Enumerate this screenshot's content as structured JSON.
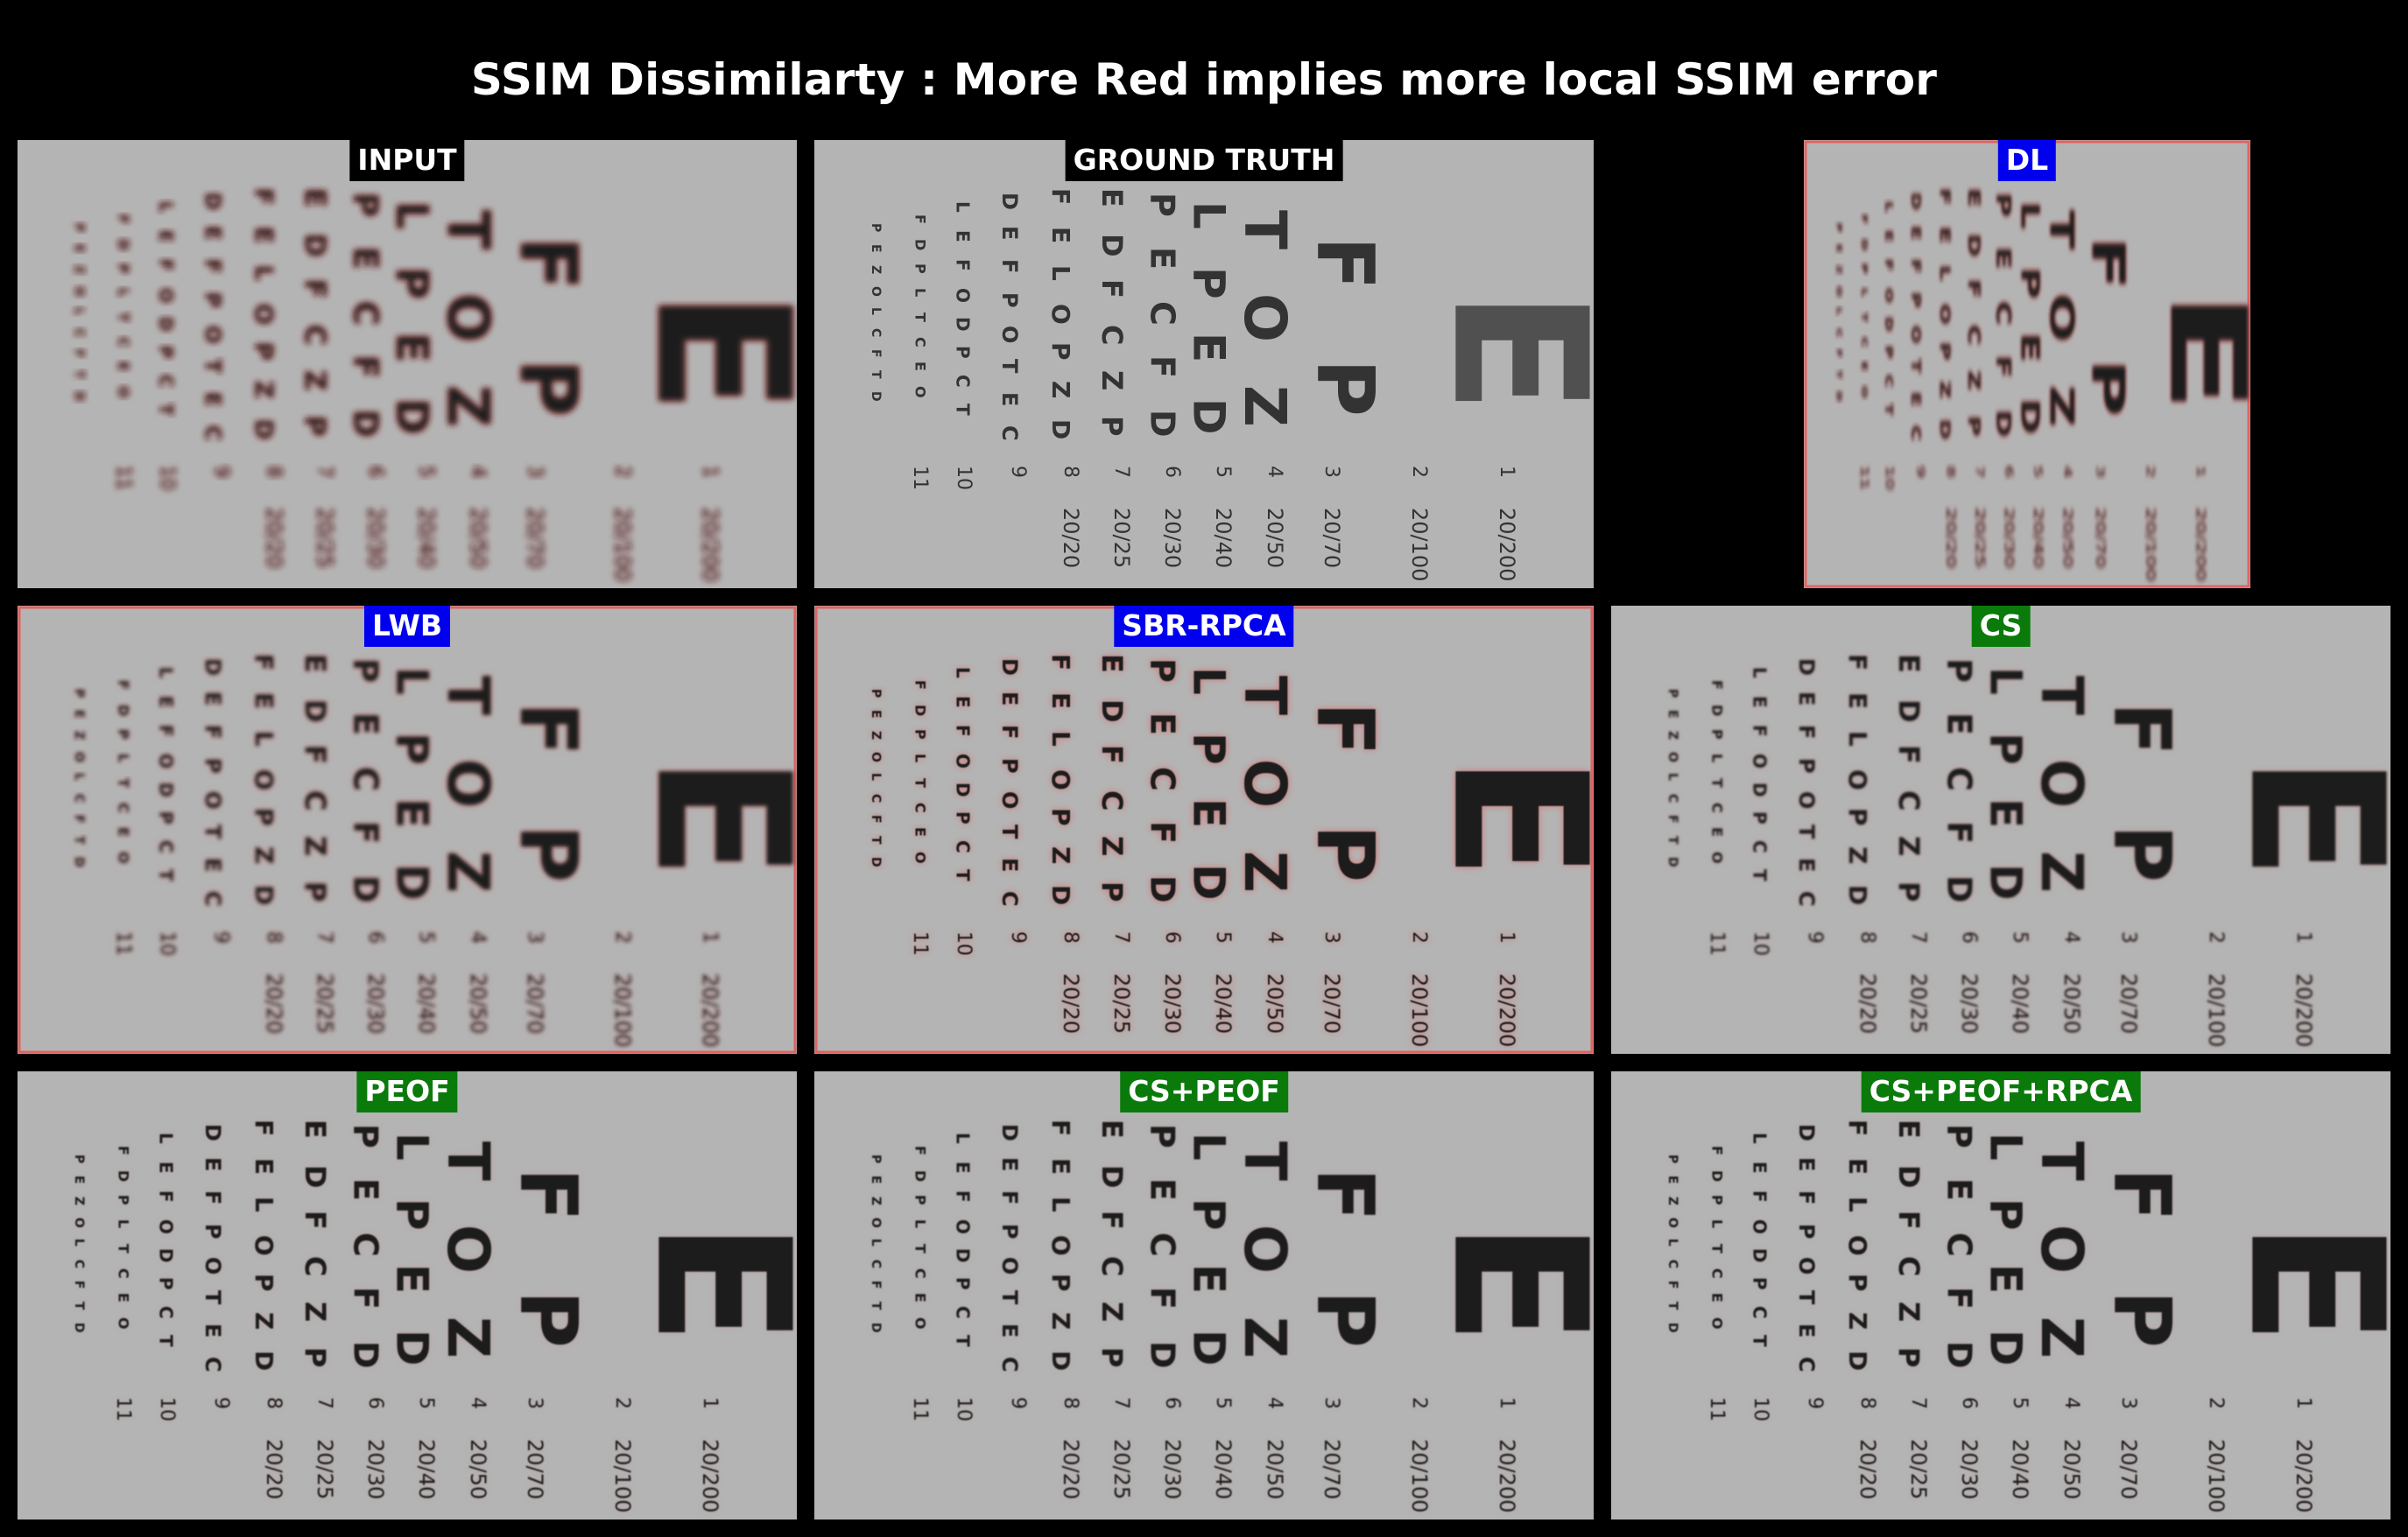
{
  "figure": {
    "title": "SSIM Dissimilarty : More Red implies more local SSIM error"
  },
  "colors": {
    "background": "#000000",
    "chart_gray": "#b3b3b3",
    "badge_black": "#000000",
    "badge_blue": "#0000ee",
    "badge_green": "#0a7a0a",
    "error_red": "#e85050"
  },
  "chart": {
    "big_letters": [
      "E",
      "F",
      "P",
      "T",
      "O",
      "Z",
      "L",
      "P",
      "E",
      "D"
    ],
    "columns": [
      "P E C F D",
      "E D F C Z P",
      "F E L O P Z D",
      "D E F P O T E C",
      "L E F O D P C T",
      "F D P L T C E O",
      "P E Z O L C F T D"
    ],
    "row_numbers": [
      "1",
      "2",
      "3",
      "4",
      "5",
      "6",
      "7",
      "8",
      "9",
      "10",
      "11"
    ],
    "acuity": [
      "20/200",
      "20/100",
      "20/70",
      "20/50",
      "20/40",
      "20/30",
      "20/25",
      "20/20"
    ]
  },
  "panels": [
    {
      "label": "INPUT",
      "badge_color": "#000000",
      "mode": "input",
      "blur": 3.4,
      "redness": 0.9
    },
    {
      "label": "GROUND TRUTH",
      "badge_color": "#000000",
      "mode": "gt",
      "blur": 0,
      "redness": 0
    },
    {
      "label": "DL",
      "badge_color": "#0000ee",
      "mode": "dl",
      "blur": 3.0,
      "redness": 0.9
    },
    {
      "label": "LWB",
      "badge_color": "#0000ee",
      "mode": "lwb",
      "blur": 2.0,
      "redness": 0.6
    },
    {
      "label": "SBR-RPCA",
      "badge_color": "#0000ee",
      "mode": "sbr",
      "blur": 0.6,
      "redness": 0.75
    },
    {
      "label": "CS",
      "badge_color": "#0a7a0a",
      "mode": "cs",
      "blur": 1.2,
      "redness": 0.3
    },
    {
      "label": "PEOF",
      "badge_color": "#0a7a0a",
      "mode": "peof",
      "blur": 0.9,
      "redness": 0.2
    },
    {
      "label": "CS+PEOF",
      "badge_color": "#0a7a0a",
      "mode": "cspeof",
      "blur": 0.7,
      "redness": 0.15
    },
    {
      "label": "CS+PEOF+RPCA",
      "badge_color": "#0a7a0a",
      "mode": "cspeofrpca",
      "blur": 0.7,
      "redness": 0.15
    }
  ]
}
